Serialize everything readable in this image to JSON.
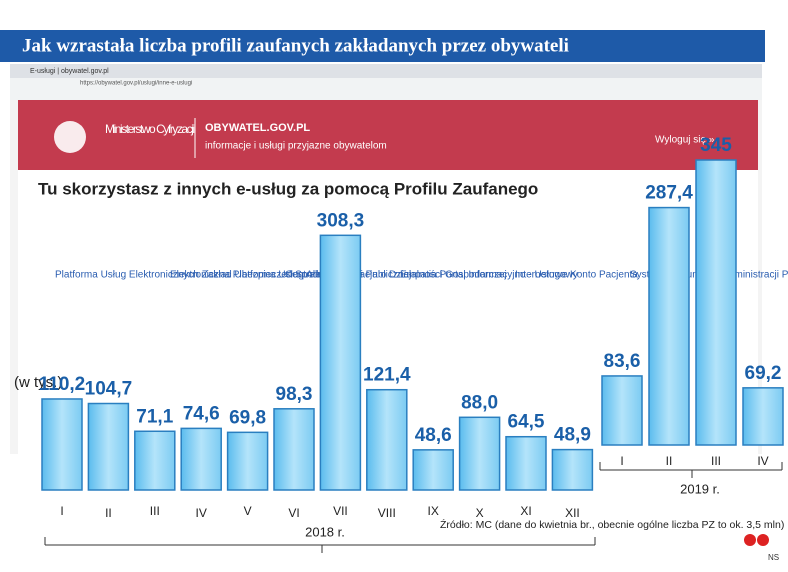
{
  "chart_data": {
    "type": "bar",
    "title": "Jak wzrastała liczba profili zaufanych zakładanych przez  obywateli",
    "unit_label": "(w tys.)",
    "categories": [
      "I",
      "II",
      "III",
      "IV",
      "V",
      "VI",
      "VII",
      "VIII",
      "IX",
      "X",
      "XI",
      "XII",
      "I",
      "II",
      "III",
      "IV"
    ],
    "group_labels": [
      "2018 r.",
      "2019 r."
    ],
    "values": [
      110.2,
      104.7,
      71.1,
      74.6,
      69.8,
      98.3,
      308.3,
      121.4,
      48.6,
      88.0,
      64.5,
      48.9,
      83.6,
      287.4,
      345,
      69.2
    ],
    "value_labels": [
      "110,2",
      "104,7",
      "71,1",
      "74,6",
      "69,8",
      "98,3",
      "308,3",
      "121,4",
      "48,6",
      "88,0",
      "64,5",
      "48,9",
      "83,6",
      "287,4",
      "345",
      "69,2"
    ],
    "color": "#9ad8f5",
    "source": "Źródło: MC (dane do kwietnia br., obecnie ogólne liczba PZ to ok. 3,5 mln)",
    "credit": "NS"
  },
  "screenshot": {
    "tab": "E-usługi | obywatel.gov.pl",
    "url": "https://obywatel.gov.pl/uslugi/inne-e-uslugi",
    "ministry": "Ministerstwo Cyfryzacji",
    "site": "OBYWATEL.GOV.PL",
    "tagline": "informacje i usługi przyjazne obywatelom",
    "logout": "Wyloguj się »",
    "heading": "Tu skorzystasz z innych e-usług za pomocą Profilu Zaufanego",
    "services": [
      "Platforma Usług Elektronicznych Zakład Ubezpieczeń Społecznych",
      "Elektroniczna Platforma Usług Administracji Publicznej",
      "Centralna Informacja o Działalności Gospodarczej",
      "Empatia Portal Informacyjno - Usługowy",
      "Internetowe Konto Pacjenta",
      "System Komunikacji Administracji Publicznej"
    ]
  }
}
